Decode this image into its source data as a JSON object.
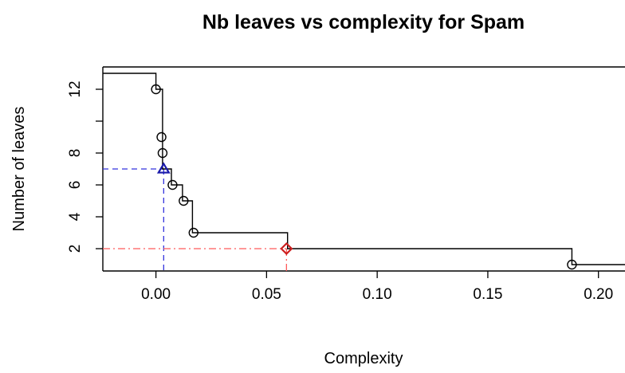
{
  "chart_data": {
    "type": "line",
    "title": "Nb leaves vs complexity for Spam",
    "xlabel": "Complexity",
    "ylabel": "Number of leaves",
    "xlim": [
      -0.024,
      0.212
    ],
    "ylim": [
      0.6,
      13.4
    ],
    "x_ticks": [
      0.0,
      0.05,
      0.1,
      0.15,
      0.2
    ],
    "x_tick_labels": [
      "0.00",
      "0.05",
      "0.10",
      "0.15",
      "0.20"
    ],
    "y_ticks": [
      2,
      4,
      6,
      8,
      10,
      12
    ],
    "y_tick_labels": [
      "2",
      "4",
      "6",
      "8",
      "",
      "12"
    ],
    "step_series": {
      "name": "",
      "color": "#000000",
      "x": [
        -0.024,
        0.0,
        0.0,
        0.003,
        0.003,
        0.007,
        0.007,
        0.012,
        0.012,
        0.0165,
        0.0165,
        0.0595,
        0.0595,
        0.188,
        0.188,
        0.212
      ],
      "y": [
        13,
        13,
        12,
        12,
        7,
        7,
        6,
        6,
        5,
        5,
        3,
        3,
        2,
        2,
        1,
        1
      ]
    },
    "points": {
      "name": "",
      "shape": "circle",
      "color": "#000000",
      "x": [
        0.0,
        0.0025,
        0.003,
        0.0075,
        0.0125,
        0.017,
        0.188
      ],
      "y": [
        12,
        9,
        8,
        6,
        5,
        3,
        1
      ]
    },
    "markers": [
      {
        "name": "",
        "shape": "triangle",
        "color": "#1a1aaa",
        "x": 0.0035,
        "y": 7,
        "guide_style": "dashed",
        "guide_color": "#3333dd"
      },
      {
        "name": "",
        "shape": "diamond",
        "color": "#cc1f1f",
        "x": 0.059,
        "y": 2,
        "guide_style": "dashdot",
        "guide_color": "#ff5a5a"
      }
    ],
    "grid": false,
    "legend": "none"
  }
}
